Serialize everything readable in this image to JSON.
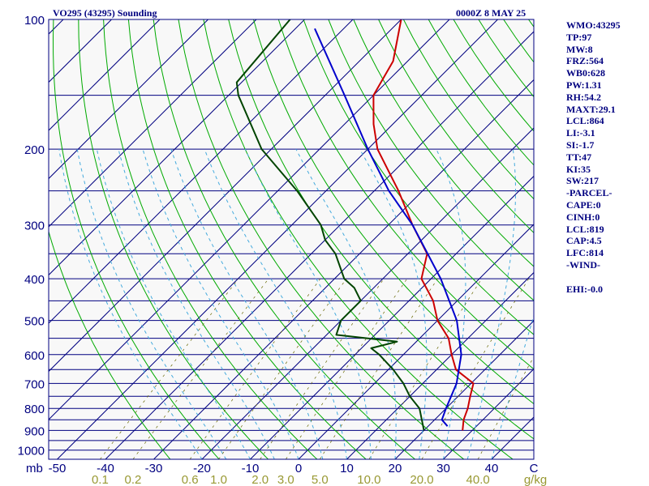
{
  "header": {
    "title_left": "VO295 (43295) Sounding",
    "title_right": "0000Z  8 MAY 25"
  },
  "indices": [
    "WMO:43295",
    "TP:97",
    "MW:8",
    "FRZ:564",
    "WB0:628",
    "PW:1.31",
    "RH:54.2",
    "MAXT:29.1",
    "LCL:864",
    "LI:-3.1",
    "SI:-1.7",
    "TT:47",
    "KI:35",
    "SW:217",
    "-PARCEL-",
    "CAPE:0",
    "CINH:0",
    "LCL:819",
    "CAP:4.5",
    "LFC:814",
    "-WIND-",
    "",
    "EHI:-0.0"
  ],
  "colors": {
    "isobar": "#000080",
    "isotherm": "#000080",
    "dry_adiabat": "#00aa00",
    "moist_adiabat": "#44aadd",
    "mixing_ratio": "#666600",
    "temperature": "#cc0000",
    "dewpoint": "#004400",
    "parcel": "#0000cc",
    "pressure_labels": "#000080",
    "temp_labels": "#000080",
    "mixing_labels": "#999933",
    "background": "#f8f8f8"
  },
  "chart_data": {
    "type": "line",
    "title": "VO295 (43295) Sounding",
    "subtitle": "0000Z  8 MAY 25",
    "xlabel": "C",
    "ylabel": "mb",
    "pressure_ticks": [
      100,
      200,
      300,
      400,
      500,
      600,
      700,
      800,
      900,
      1000
    ],
    "temperature_ticks": [
      -50,
      -40,
      -30,
      -20,
      -10,
      0,
      10,
      20,
      30,
      40
    ],
    "x_axis_unit": "C",
    "y_axis_unit": "mb",
    "mixing_ratio_ticks": [
      "0.1",
      "0.2",
      "0.6",
      "1.0",
      "2.0",
      "3.0",
      "5.0",
      "10.0",
      "20.0",
      "40.0"
    ],
    "mixing_ratio_unit": "g/kg",
    "ylim": [
      1050,
      100
    ],
    "xlim": [
      -50,
      50
    ],
    "log_scale_pressure": true,
    "grid": true,
    "series": [
      {
        "key": "temperature",
        "points": [
          [
            900,
            28
          ],
          [
            850,
            26
          ],
          [
            800,
            24.5
          ],
          [
            750,
            22.5
          ],
          [
            700,
            20.5
          ],
          [
            650,
            14
          ],
          [
            600,
            10
          ],
          [
            550,
            6
          ],
          [
            500,
            0
          ],
          [
            450,
            -5
          ],
          [
            400,
            -12
          ],
          [
            350,
            -16
          ],
          [
            300,
            -25
          ],
          [
            250,
            -35
          ],
          [
            200,
            -48
          ],
          [
            175,
            -54
          ],
          [
            150,
            -60
          ],
          [
            125,
            -63
          ],
          [
            100,
            -70
          ]
        ]
      },
      {
        "key": "dewpoint",
        "points": [
          [
            900,
            20
          ],
          [
            800,
            14.5
          ],
          [
            750,
            10
          ],
          [
            700,
            6
          ],
          [
            650,
            1
          ],
          [
            600,
            -5
          ],
          [
            580,
            -8
          ],
          [
            560,
            -4
          ],
          [
            540,
            -18
          ],
          [
            500,
            -20
          ],
          [
            450,
            -20
          ],
          [
            420,
            -24
          ],
          [
            400,
            -28
          ],
          [
            350,
            -35
          ],
          [
            325,
            -40
          ],
          [
            300,
            -44
          ],
          [
            250,
            -56
          ],
          [
            200,
            -72
          ],
          [
            150,
            -88
          ],
          [
            140,
            -91
          ],
          [
            100,
            -93
          ]
        ]
      },
      {
        "key": "parcel",
        "points": [
          [
            880,
            24
          ],
          [
            850,
            21.5
          ],
          [
            800,
            20
          ],
          [
            700,
            17
          ],
          [
            600,
            12
          ],
          [
            500,
            4
          ],
          [
            400,
            -8
          ],
          [
            300,
            -25
          ],
          [
            250,
            -37
          ],
          [
            200,
            -50
          ],
          [
            150,
            -66
          ],
          [
            105,
            -86
          ]
        ]
      }
    ]
  }
}
